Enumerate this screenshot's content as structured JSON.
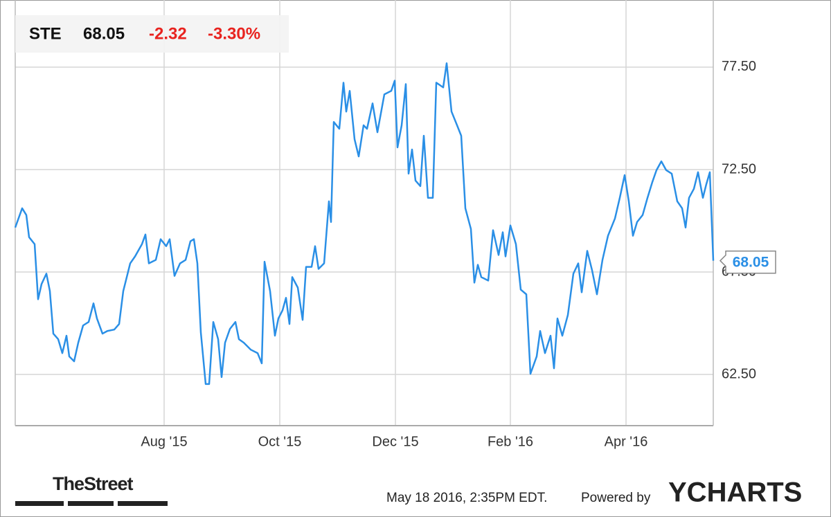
{
  "header": {
    "ticker": "STE",
    "price": "68.05",
    "change": "-2.32",
    "change_pct": "-3.30%"
  },
  "footer": {
    "source": "TheStreet",
    "timestamp": "May 18 2016, 2:35PM EDT.",
    "powered": "Powered by",
    "brand": "YCHARTS"
  },
  "chart_data": {
    "type": "line",
    "x": [
      2015.368,
      2015.378,
      2015.384,
      2015.388,
      2015.396,
      2015.401,
      2015.406,
      2015.413,
      2015.418,
      2015.423,
      2015.43,
      2015.436,
      2015.442,
      2015.446,
      2015.453,
      2015.459,
      2015.466,
      2015.474,
      2015.481,
      2015.486,
      2015.494,
      2015.501,
      2015.511,
      2015.518,
      2015.524,
      2015.534,
      2015.541,
      2015.551,
      2015.556,
      2015.561,
      2015.571,
      2015.578,
      2015.586,
      2015.591,
      2015.598,
      2015.606,
      2015.614,
      2015.621,
      2015.626,
      2015.631,
      2015.636,
      2015.643,
      2015.648,
      2015.654,
      2015.661,
      2015.666,
      2015.671,
      2015.678,
      2015.686,
      2015.691,
      2015.698,
      2015.708,
      2015.718,
      2015.724,
      2015.728,
      2015.736,
      2015.743,
      2015.748,
      2015.754,
      2015.759,
      2015.764,
      2015.768,
      2015.776,
      2015.783,
      2015.788,
      2015.796,
      2015.801,
      2015.806,
      2015.814,
      2015.821,
      2015.824,
      2015.828,
      2015.836,
      2015.842,
      2015.846,
      2015.851,
      2015.858,
      2015.864,
      2015.871,
      2015.876,
      2015.884,
      2015.891,
      2015.901,
      2015.911,
      2015.916,
      2015.92,
      2015.926,
      2015.932,
      2015.936,
      2015.941,
      2015.946,
      2015.953,
      2015.958,
      2015.964,
      2015.971,
      2015.976,
      2015.986,
      2015.991,
      2015.998,
      2016.006,
      2016.012,
      2016.018,
      2016.026,
      2016.031,
      2016.036,
      2016.041,
      2016.051,
      2016.058,
      2016.066,
      2016.072,
      2016.076,
      2016.083,
      2016.091,
      2016.098,
      2016.106,
      2016.112,
      2016.121,
      2016.126,
      2016.133,
      2016.141,
      2016.146,
      2016.151,
      2016.158,
      2016.166,
      2016.174,
      2016.181,
      2016.186,
      2016.194,
      2016.201,
      2016.208,
      2016.216,
      2016.224,
      2016.234,
      2016.241,
      2016.248,
      2016.254,
      2016.26,
      2016.266,
      2016.274,
      2016.281,
      2016.288,
      2016.294,
      2016.301,
      2016.308,
      2016.316,
      2016.324,
      2016.331,
      2016.336,
      2016.341,
      2016.348,
      2016.354,
      2016.361,
      2016.366,
      2016.371,
      2016.376
    ],
    "series": [
      {
        "name": "STE",
        "color": "#2a8fe6",
        "values": [
          69.67,
          70.61,
          70.28,
          69.2,
          68.86,
          66.17,
          66.91,
          67.42,
          66.57,
          64.49,
          64.22,
          63.54,
          64.39,
          63.38,
          63.14,
          64.05,
          64.89,
          65.06,
          65.97,
          65.23,
          64.49,
          64.62,
          64.69,
          64.96,
          66.57,
          67.92,
          68.26,
          68.86,
          69.33,
          67.92,
          68.09,
          69.1,
          68.76,
          69.1,
          67.31,
          67.92,
          68.09,
          69.0,
          69.1,
          67.92,
          64.55,
          62.03,
          62.03,
          65.06,
          64.22,
          62.37,
          64.05,
          64.72,
          65.06,
          64.22,
          64.05,
          63.71,
          63.54,
          63.04,
          68.0,
          66.57,
          64.39,
          65.23,
          65.63,
          66.24,
          64.96,
          67.25,
          66.74,
          65.16,
          67.75,
          67.75,
          68.76,
          67.65,
          67.92,
          70.95,
          69.94,
          74.82,
          74.49,
          76.74,
          75.33,
          76.34,
          73.98,
          73.14,
          74.66,
          74.49,
          75.73,
          74.32,
          76.17,
          76.34,
          76.84,
          73.58,
          74.66,
          76.67,
          72.3,
          73.48,
          71.96,
          71.69,
          74.15,
          71.12,
          71.12,
          76.74,
          76.51,
          77.69,
          75.33,
          74.66,
          74.15,
          70.61,
          69.6,
          66.98,
          67.85,
          67.25,
          67.08,
          69.54,
          68.33,
          69.44,
          68.26,
          69.77,
          68.86,
          66.64,
          66.41,
          62.53,
          63.38,
          64.62,
          63.54,
          64.39,
          62.8,
          65.23,
          64.39,
          65.4,
          67.42,
          67.92,
          66.51,
          68.53,
          67.58,
          66.41,
          68.09,
          69.27,
          70.11,
          71.12,
          72.23,
          70.95,
          69.27,
          69.94,
          70.28,
          71.12,
          71.89,
          72.47,
          72.9,
          72.47,
          72.3,
          70.95,
          70.61,
          69.67,
          71.12,
          71.56,
          72.37,
          71.12,
          71.79,
          72.37,
          68.05
        ]
      }
    ],
    "xlim": [
      2015.368,
      2016.376
    ],
    "xticks": [
      {
        "value": 2015.583,
        "label": "Aug '15"
      },
      {
        "value": 2015.75,
        "label": "Oct '15"
      },
      {
        "value": 2015.917,
        "label": "Dec '15"
      },
      {
        "value": 2016.083,
        "label": "Feb '16"
      },
      {
        "value": 2016.25,
        "label": "Apr '16"
      }
    ],
    "ylim": [
      60,
      80.1
    ],
    "yticks": [
      {
        "value": 62.5,
        "label": "62.50"
      },
      {
        "value": 67.5,
        "label": "67.50"
      },
      {
        "value": 72.5,
        "label": "72.50"
      },
      {
        "value": 77.5,
        "label": "77.50"
      }
    ],
    "grid": true
  }
}
